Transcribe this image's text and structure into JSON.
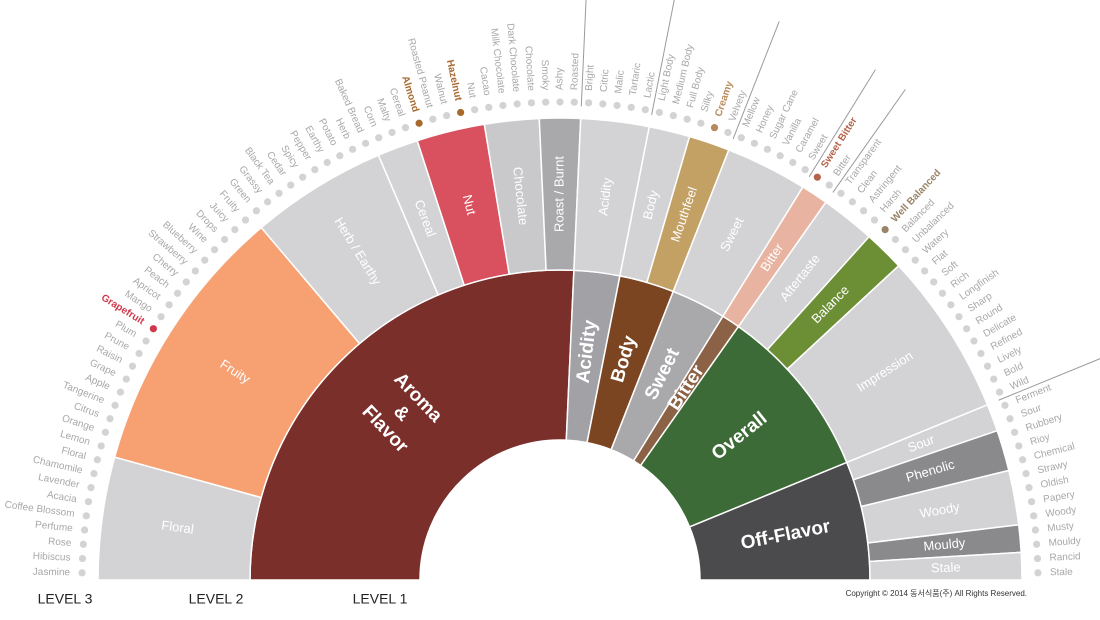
{
  "wheel": {
    "level1": [
      {
        "label": "Aroma & Flavor",
        "color": "#7a2f2b",
        "groups": [
          {
            "label": "Floral",
            "color": "#d3d3d5",
            "descriptors": [
              {
                "label": "Jasmine"
              },
              {
                "label": "Hibiscus"
              },
              {
                "label": "Rose"
              },
              {
                "label": "Perfume"
              },
              {
                "label": "Coffee Blossom"
              },
              {
                "label": "Acacia"
              },
              {
                "label": "Lavender"
              },
              {
                "label": "Chamomile"
              },
              {
                "label": "Floral"
              }
            ]
          },
          {
            "label": "Fruity",
            "color": "#f7a173",
            "descriptors": [
              {
                "label": "Lemon"
              },
              {
                "label": "Orange"
              },
              {
                "label": "Citrus"
              },
              {
                "label": "Tangerine"
              },
              {
                "label": "Apple"
              },
              {
                "label": "Grape"
              },
              {
                "label": "Raisin"
              },
              {
                "label": "Prune"
              },
              {
                "label": "Plum"
              },
              {
                "label": "Grapefruit",
                "highlight": true,
                "color": "#d0384c"
              },
              {
                "label": "Mango"
              },
              {
                "label": "Apricot"
              },
              {
                "label": "Peach"
              },
              {
                "label": "Cherry"
              },
              {
                "label": "Strawberry"
              },
              {
                "label": "Blueberry"
              },
              {
                "label": "Wine"
              },
              {
                "label": "Drops"
              },
              {
                "label": "Juicy"
              },
              {
                "label": "Fruity"
              }
            ]
          },
          {
            "label": "Herb / Earthy",
            "color": "#d3d3d5",
            "descriptors": [
              {
                "label": "Green"
              },
              {
                "label": "Grassy"
              },
              {
                "label": "Black Tea"
              },
              {
                "label": "Cedar"
              },
              {
                "label": "Spicy"
              },
              {
                "label": "Pepper"
              },
              {
                "label": "Earthy"
              },
              {
                "label": "Potato"
              },
              {
                "label": "Herb"
              },
              {
                "label": "Baked Bread"
              }
            ]
          },
          {
            "label": "Cereal",
            "color": "#d3d3d5",
            "descriptors": [
              {
                "label": "Corn"
              },
              {
                "label": "Malty"
              },
              {
                "label": "Cereal"
              }
            ]
          },
          {
            "label": "Nut",
            "color": "#d9505e",
            "descriptors": [
              {
                "label": "Almond",
                "highlight": true,
                "color": "#a8692e"
              },
              {
                "label": "Roasted Peanut"
              },
              {
                "label": "Walnut"
              },
              {
                "label": "Hazelnut",
                "highlight": true,
                "color": "#a8692e"
              },
              {
                "label": "Nut"
              }
            ]
          },
          {
            "label": "Chocolate",
            "color": "#c9c9cb",
            "descriptors": [
              {
                "label": "Cacao"
              },
              {
                "label": "Milk Chocolate"
              },
              {
                "label": "Dark Chocolate"
              },
              {
                "label": "Chocolate"
              }
            ]
          },
          {
            "label": "Roast / Burnt",
            "color": "#a9a9ac",
            "descriptors": [
              {
                "label": "Smoky"
              },
              {
                "label": "Ashy"
              },
              {
                "label": "Roasted"
              }
            ]
          }
        ]
      },
      {
        "label": "Acidity",
        "color": "#a2a2a6",
        "groups": [
          {
            "label": "Acidity",
            "color": "#d3d3d5",
            "descriptors": [
              {
                "label": "Bright"
              },
              {
                "label": "Citric"
              },
              {
                "label": "Malic"
              },
              {
                "label": "Tartaric"
              },
              {
                "label": "Lactic"
              }
            ]
          }
        ]
      },
      {
        "label": "Body",
        "color": "#7b4521",
        "groups": [
          {
            "label": "Body",
            "color": "#d3d3d5",
            "descriptors": [
              {
                "label": "Light Body"
              },
              {
                "label": "Medium Body"
              },
              {
                "label": "Full Body"
              }
            ]
          },
          {
            "label": "Mouthfeel",
            "color": "#c3a063",
            "descriptors": [
              {
                "label": "Silky"
              },
              {
                "label": "Creamy",
                "highlight": true,
                "color": "#b8895a"
              },
              {
                "label": "Velvety"
              }
            ]
          }
        ]
      },
      {
        "label": "Sweet",
        "color": "#a9a9ac",
        "groups": [
          {
            "label": "Sweet",
            "color": "#d3d3d5",
            "descriptors": [
              {
                "label": "Mellow"
              },
              {
                "label": "Honey"
              },
              {
                "label": "Sugar Cane"
              },
              {
                "label": "Vanilla"
              },
              {
                "label": "Caramel"
              },
              {
                "label": "Sweet"
              }
            ]
          }
        ]
      },
      {
        "label": "Bitter",
        "color": "#8c6247",
        "groups": [
          {
            "label": "Bitter",
            "color": "#e8b4a1",
            "descriptors": [
              {
                "label": "Sweet Bitter",
                "highlight": true,
                "color": "#b5634a"
              },
              {
                "label": "Bitter"
              }
            ]
          }
        ]
      },
      {
        "label": "Overall",
        "color": "#3d6b37",
        "groups": [
          {
            "label": "Aftertaste",
            "color": "#d3d3d5",
            "descriptors": [
              {
                "label": "Transparent"
              },
              {
                "label": "Clean"
              },
              {
                "label": "Astringent"
              },
              {
                "label": "Harsh"
              }
            ]
          },
          {
            "label": "Balance",
            "color": "#6c8f36",
            "descriptors": [
              {
                "label": "Well Balanced",
                "highlight": true,
                "color": "#9a8468"
              },
              {
                "label": "Balanced"
              },
              {
                "label": "Unbalanced"
              }
            ]
          },
          {
            "label": "Impression",
            "color": "#d3d3d5",
            "descriptors": [
              {
                "label": "Watery"
              },
              {
                "label": "Flat"
              },
              {
                "label": "Soft"
              },
              {
                "label": "Rich"
              },
              {
                "label": "Longfinish"
              },
              {
                "label": "Sharp"
              },
              {
                "label": "Round"
              },
              {
                "label": "Delicate"
              },
              {
                "label": "Refined"
              },
              {
                "label": "Lively"
              },
              {
                "label": "Bold"
              },
              {
                "label": "Wild"
              }
            ]
          }
        ]
      },
      {
        "label": "Off-Flavor",
        "color": "#4b4b4d",
        "groups": [
          {
            "label": "Sour",
            "color": "#d3d3d5",
            "descriptors": [
              {
                "label": "Ferment"
              },
              {
                "label": "Sour"
              }
            ]
          },
          {
            "label": "Phenolic",
            "color": "#8a8a8d",
            "descriptors": [
              {
                "label": "Rubbery"
              },
              {
                "label": "Rioy"
              },
              {
                "label": "Chemical"
              }
            ]
          },
          {
            "label": "Woody",
            "color": "#d3d3d5",
            "descriptors": [
              {
                "label": "Strawy"
              },
              {
                "label": "Oldish"
              },
              {
                "label": "Papery"
              },
              {
                "label": "Woody"
              }
            ]
          },
          {
            "label": "Mouldy",
            "color": "#8a8a8d",
            "descriptors": [
              {
                "label": "Musty"
              },
              {
                "label": "Mouldy"
              }
            ]
          },
          {
            "label": "Stale",
            "color": "#d3d3d5",
            "descriptors": [
              {
                "label": "Rancid"
              },
              {
                "label": "Stale"
              }
            ]
          }
        ]
      }
    ]
  },
  "footer": {
    "levels": [
      "LEVEL 3",
      "LEVEL 2",
      "LEVEL 1"
    ],
    "copyright": "Copyright © 2014 동서식품(주) All Rights Reserved."
  }
}
